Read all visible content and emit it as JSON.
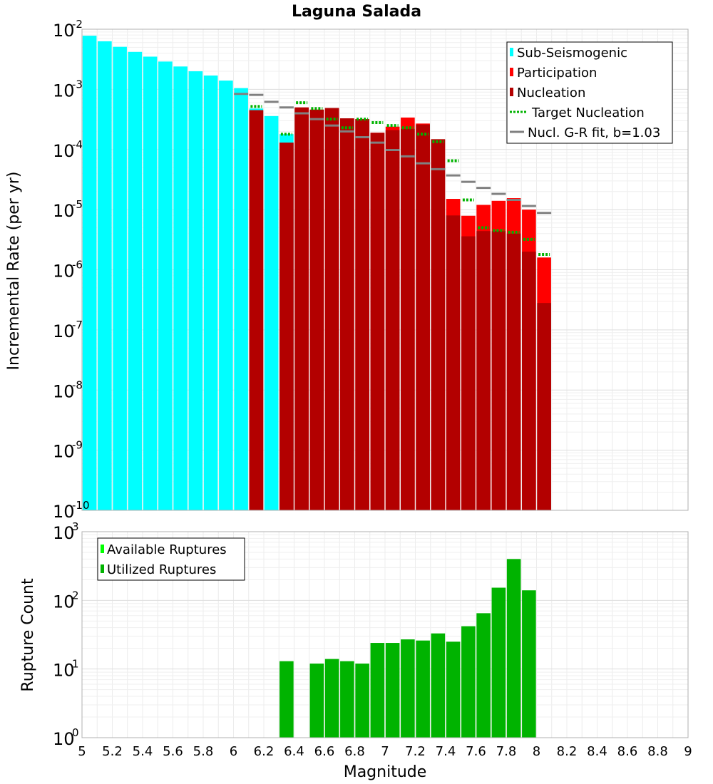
{
  "chart_data": [
    {
      "type": "bar",
      "title": "Laguna Salada",
      "xlabel": "",
      "ylabel": "Incremental Rate (per yr)",
      "yscale": "log",
      "xlim": [
        5,
        9
      ],
      "ylim": [
        1e-10,
        0.01
      ],
      "y_tick_labels": [
        {
          "base": "10",
          "exp": "-10"
        },
        {
          "base": "10",
          "exp": "-9"
        },
        {
          "base": "10",
          "exp": "-8"
        },
        {
          "base": "10",
          "exp": "-7"
        },
        {
          "base": "10",
          "exp": "-6"
        },
        {
          "base": "10",
          "exp": "-5"
        },
        {
          "base": "10",
          "exp": "-4"
        },
        {
          "base": "10",
          "exp": "-3"
        },
        {
          "base": "10",
          "exp": "-2"
        }
      ],
      "grid": true,
      "legend_position": "top-right",
      "colors": {
        "sub_seismogenic": "#00ffff",
        "participation": "#ff0000",
        "nucleation": "#b30000",
        "target_nucleation": "#00b300",
        "gr_fit": "#808080"
      },
      "legend": [
        {
          "label": "Sub-Seismogenic",
          "kind": "bar",
          "color": "#00ffff"
        },
        {
          "label": "Participation",
          "kind": "bar",
          "color": "#ff0000"
        },
        {
          "label": "Nucleation",
          "kind": "bar",
          "color": "#b30000"
        },
        {
          "label": "Target Nucleation",
          "kind": "dotted",
          "color": "#00b300"
        },
        {
          "label": "Nucl. G-R fit, b=1.03",
          "kind": "line",
          "color": "#808080"
        }
      ],
      "series": [
        {
          "name": "Sub-Seismogenic",
          "x": [
            5.05,
            5.15,
            5.25,
            5.35,
            5.45,
            5.55,
            5.65,
            5.75,
            5.85,
            5.95,
            6.05,
            6.15,
            6.25,
            6.35
          ],
          "values": [
            0.0078,
            0.0063,
            0.0051,
            0.0042,
            0.0035,
            0.0029,
            0.0024,
            0.002,
            0.0017,
            0.0014,
            0.00105,
            0.00048,
            0.00036,
            0.00018
          ]
        },
        {
          "name": "Participation",
          "x": [
            6.15,
            6.35,
            6.45,
            6.55,
            6.65,
            6.75,
            6.85,
            6.95,
            7.05,
            7.15,
            7.25,
            7.35,
            7.45,
            7.55,
            7.65,
            7.75,
            7.85,
            7.95,
            8.05
          ],
          "values": [
            0.00045,
            0.00013,
            0.0005,
            0.00046,
            0.00049,
            0.00033,
            0.00032,
            0.00019,
            0.00024,
            0.00034,
            0.00027,
            0.000148,
            1.51e-05,
            7.9e-06,
            1.2e-05,
            1.4e-05,
            1.55e-05,
            1e-05,
            1.6e-06
          ]
        },
        {
          "name": "Nucleation",
          "x": [
            6.15,
            6.35,
            6.45,
            6.55,
            6.65,
            6.75,
            6.85,
            6.95,
            7.05,
            7.15,
            7.25,
            7.35,
            7.45,
            7.55,
            7.65,
            7.75,
            7.85,
            7.95,
            8.05
          ],
          "values": [
            0.00045,
            0.00013,
            0.0005,
            0.00046,
            0.00049,
            0.00033,
            0.00032,
            0.00019,
            0.00021,
            0.00022,
            0.00026,
            0.000148,
            8e-06,
            3.6e-06,
            4.4e-06,
            4.4e-06,
            4e-06,
            2e-06,
            2.8e-07
          ]
        },
        {
          "name": "Target Nucleation",
          "x": [
            6.15,
            6.35,
            6.45,
            6.55,
            6.65,
            6.75,
            6.85,
            6.95,
            7.05,
            7.15,
            7.25,
            7.35,
            7.45,
            7.55,
            7.65,
            7.75,
            7.85,
            7.95,
            8.05
          ],
          "values": [
            0.00052,
            0.00018,
            0.0006,
            0.00048,
            0.00032,
            0.00023,
            0.00032,
            0.00028,
            0.00025,
            0.00023,
            0.00018,
            0.000135,
            6.5e-05,
            1.45e-05,
            5e-06,
            4.5e-06,
            4.2e-06,
            3.2e-06,
            1.8e-06
          ]
        },
        {
          "name": "Nucl. G-R fit, b=1.03",
          "x": [
            6.05,
            6.15,
            6.25,
            6.35,
            6.45,
            6.55,
            6.65,
            6.75,
            6.85,
            6.95,
            7.05,
            7.15,
            7.25,
            7.35,
            7.45,
            7.55,
            7.65,
            7.75,
            7.85,
            7.95,
            8.05
          ],
          "values": [
            0.00084,
            0.00081,
            0.00062,
            0.0005,
            0.0004,
            0.00032,
            0.00025,
            0.0002,
            0.00016,
            0.00013,
            9.8e-05,
            7.7e-05,
            5.9e-05,
            4.7e-05,
            3.7e-05,
            2.9e-05,
            2.3e-05,
            1.83e-05,
            1.45e-05,
            1.15e-05,
            8.8e-06
          ]
        }
      ]
    },
    {
      "type": "bar",
      "title": "",
      "xlabel": "Magnitude",
      "ylabel": "Rupture Count",
      "yscale": "log",
      "xlim": [
        5,
        9
      ],
      "ylim": [
        1,
        1000
      ],
      "x_tick_labels": [
        "5",
        "5.2",
        "5.4",
        "5.6",
        "5.8",
        "6",
        "6.2",
        "6.4",
        "6.6",
        "6.8",
        "7",
        "7.2",
        "7.4",
        "7.6",
        "7.8",
        "8",
        "8.2",
        "8.4",
        "8.6",
        "8.8",
        "9"
      ],
      "y_tick_labels": [
        {
          "base": "10",
          "exp": "0"
        },
        {
          "base": "10",
          "exp": "1"
        },
        {
          "base": "10",
          "exp": "2"
        },
        {
          "base": "10",
          "exp": "3"
        }
      ],
      "grid": true,
      "legend_position": "top-left",
      "colors": {
        "available": "#00ff00",
        "utilized": "#00b300"
      },
      "legend": [
        {
          "label": "Available Ruptures",
          "kind": "bar",
          "color": "#00ff00"
        },
        {
          "label": "Utilized Ruptures",
          "kind": "bar",
          "color": "#00b300"
        }
      ],
      "series": [
        {
          "name": "Utilized Ruptures",
          "x": [
            6.35,
            6.55,
            6.65,
            6.75,
            6.85,
            6.95,
            7.05,
            7.15,
            7.25,
            7.35,
            7.45,
            7.55,
            7.65,
            7.75,
            7.85,
            7.95,
            8.05
          ],
          "values": [
            13,
            12,
            14,
            13,
            12,
            24,
            24,
            27,
            26,
            33,
            25,
            42,
            65,
            153,
            400,
            140,
            1
          ]
        }
      ]
    }
  ]
}
